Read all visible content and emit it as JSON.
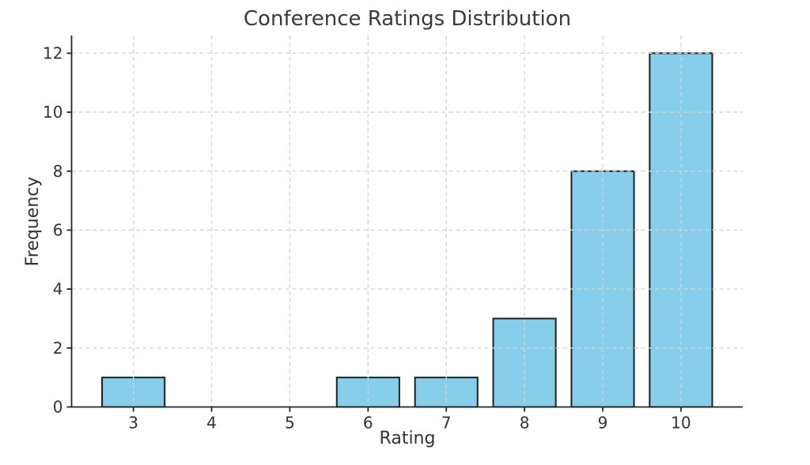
{
  "chart_data": {
    "type": "bar",
    "title": "Conference Ratings Distribution",
    "xlabel": "Rating",
    "ylabel": "Frequency",
    "x": [
      3,
      4,
      5,
      6,
      7,
      8,
      9,
      10
    ],
    "values": [
      1,
      0,
      0,
      1,
      1,
      3,
      8,
      12
    ],
    "bar_width": 0.8,
    "xticks": [
      3,
      4,
      5,
      6,
      7,
      8,
      9,
      10
    ],
    "yticks": [
      0,
      2,
      4,
      6,
      8,
      10,
      12
    ],
    "xlim": [
      2.21,
      10.79
    ],
    "ylim": [
      0,
      12.6
    ],
    "grid": true,
    "grid_style": "dashed",
    "legend": "none",
    "colors": {
      "bar_fill": "#87CEEB",
      "bar_edge": "#1f1f1f",
      "grid": "#d4d4d4",
      "axis": "#262626",
      "text": "#333333",
      "background": "#ffffff"
    }
  }
}
